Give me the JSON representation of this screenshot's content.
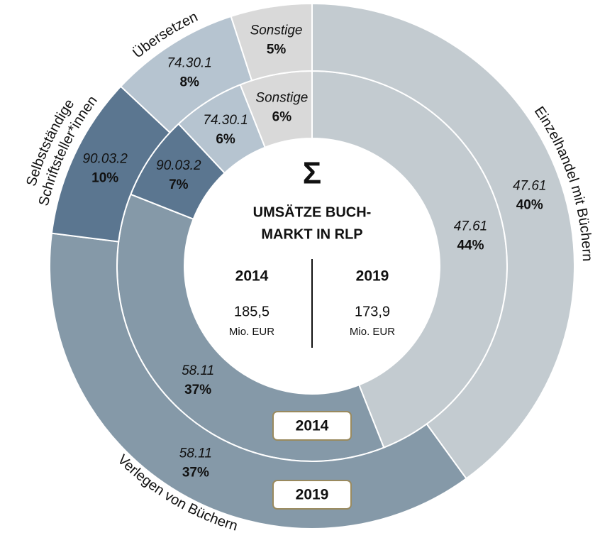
{
  "chart_data": {
    "type": "donut",
    "categories": [
      [
        "Einzelhandel mit Büchern"
      ],
      [
        "Verlegen von Büchern"
      ],
      [
        "Selbstständige",
        "Schriftsteller*innen"
      ],
      [
        "Übersetzen"
      ],
      null
    ],
    "codes": [
      "47.61",
      "58.11",
      "90.03.2",
      "74.30.1",
      "Sonstige"
    ],
    "colors": [
      "#c3cbd0",
      "#8599a8",
      "#5b7690",
      "#b6c4d0",
      "#d9d9d9"
    ],
    "series": [
      {
        "name": "2014",
        "values": [
          44,
          37,
          7,
          6,
          6
        ],
        "value_labels": [
          "44%",
          "37%",
          "7%",
          "6%",
          "6%"
        ]
      },
      {
        "name": "2019",
        "values": [
          40,
          37,
          10,
          8,
          5
        ],
        "value_labels": [
          "40%",
          "37%",
          "10%",
          "8%",
          "5%"
        ]
      }
    ],
    "center": {
      "symbol": "Σ",
      "title": [
        "UMSÄTZE BUCH-",
        "MARKT IN RLP"
      ],
      "columns": [
        {
          "year": "2014",
          "value": "185,5",
          "unit": "Mio. EUR"
        },
        {
          "year": "2019",
          "value": "173,9",
          "unit": "Mio. EUR"
        }
      ]
    }
  }
}
